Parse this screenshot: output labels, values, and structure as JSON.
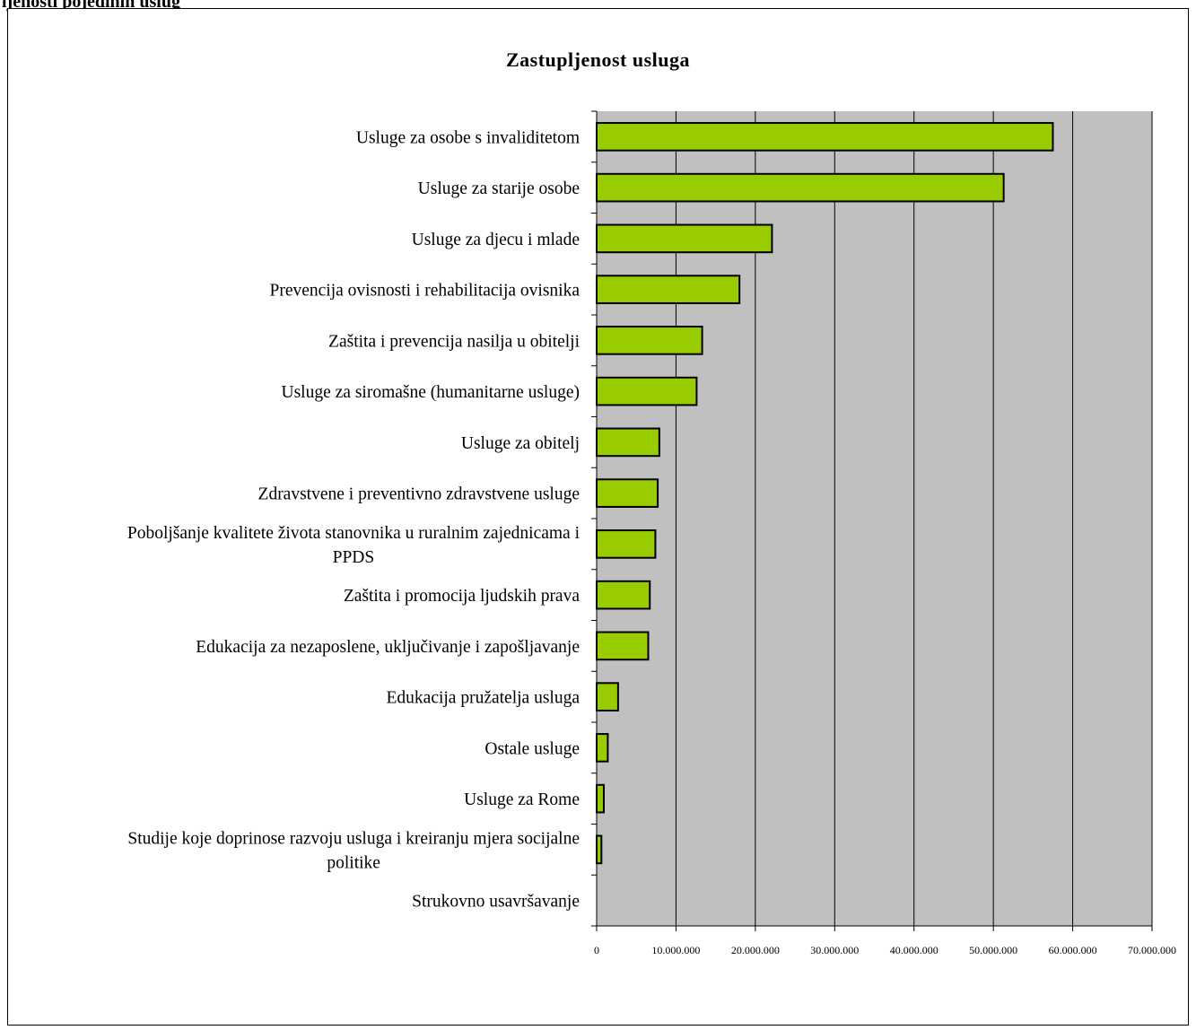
{
  "page": {
    "top_caption": "ljenosti pojedinih uslug"
  },
  "chart_data": {
    "type": "bar",
    "orientation": "horizontal",
    "title": "Zastupljenost usluga",
    "xlim": [
      0,
      70000000
    ],
    "x_ticks": [
      "0",
      "10.000.000",
      "20.000.000",
      "30.000.000",
      "40.000.000",
      "50.000.000",
      "60.000.000",
      "70.000.000"
    ],
    "grid": "vertical",
    "colors": {
      "bar": "#99cc00",
      "plot_bg": "#c0c0c0",
      "bar_border": "#000000"
    },
    "categories": [
      [
        "Usluge za osobe s invaliditetom"
      ],
      [
        "Usluge za starije osobe"
      ],
      [
        "Usluge za djecu i mlade"
      ],
      [
        "Prevencija ovisnosti i rehabilitacija ovisnika"
      ],
      [
        "Zaštita i prevencija nasilja u obitelji"
      ],
      [
        "Usluge za siromašne (humanitarne usluge)"
      ],
      [
        "Usluge za obitelj"
      ],
      [
        "Zdravstvene i preventivno zdravstvene usluge"
      ],
      [
        "Poboljšanje kvalitete života stanovnika u ruralnim zajednicama i",
        "PPDS"
      ],
      [
        "Zaštita i promocija ljudskih prava"
      ],
      [
        "Edukacija za nezaposlene, uključivanje i zapošljavanje"
      ],
      [
        "Edukacija pružatelja usluga"
      ],
      [
        "Ostale usluge"
      ],
      [
        "Usluge za Rome"
      ],
      [
        "Studije koje doprinose razvoju usluga i kreiranju mjera socijalne",
        "politike"
      ],
      [
        "Strukovno usavršavanje"
      ]
    ],
    "values": [
      57500000,
      51300000,
      22100000,
      18000000,
      13300000,
      12600000,
      7900000,
      7700000,
      7400000,
      6700000,
      6500000,
      2700000,
      1400000,
      900000,
      600000,
      0
    ]
  }
}
